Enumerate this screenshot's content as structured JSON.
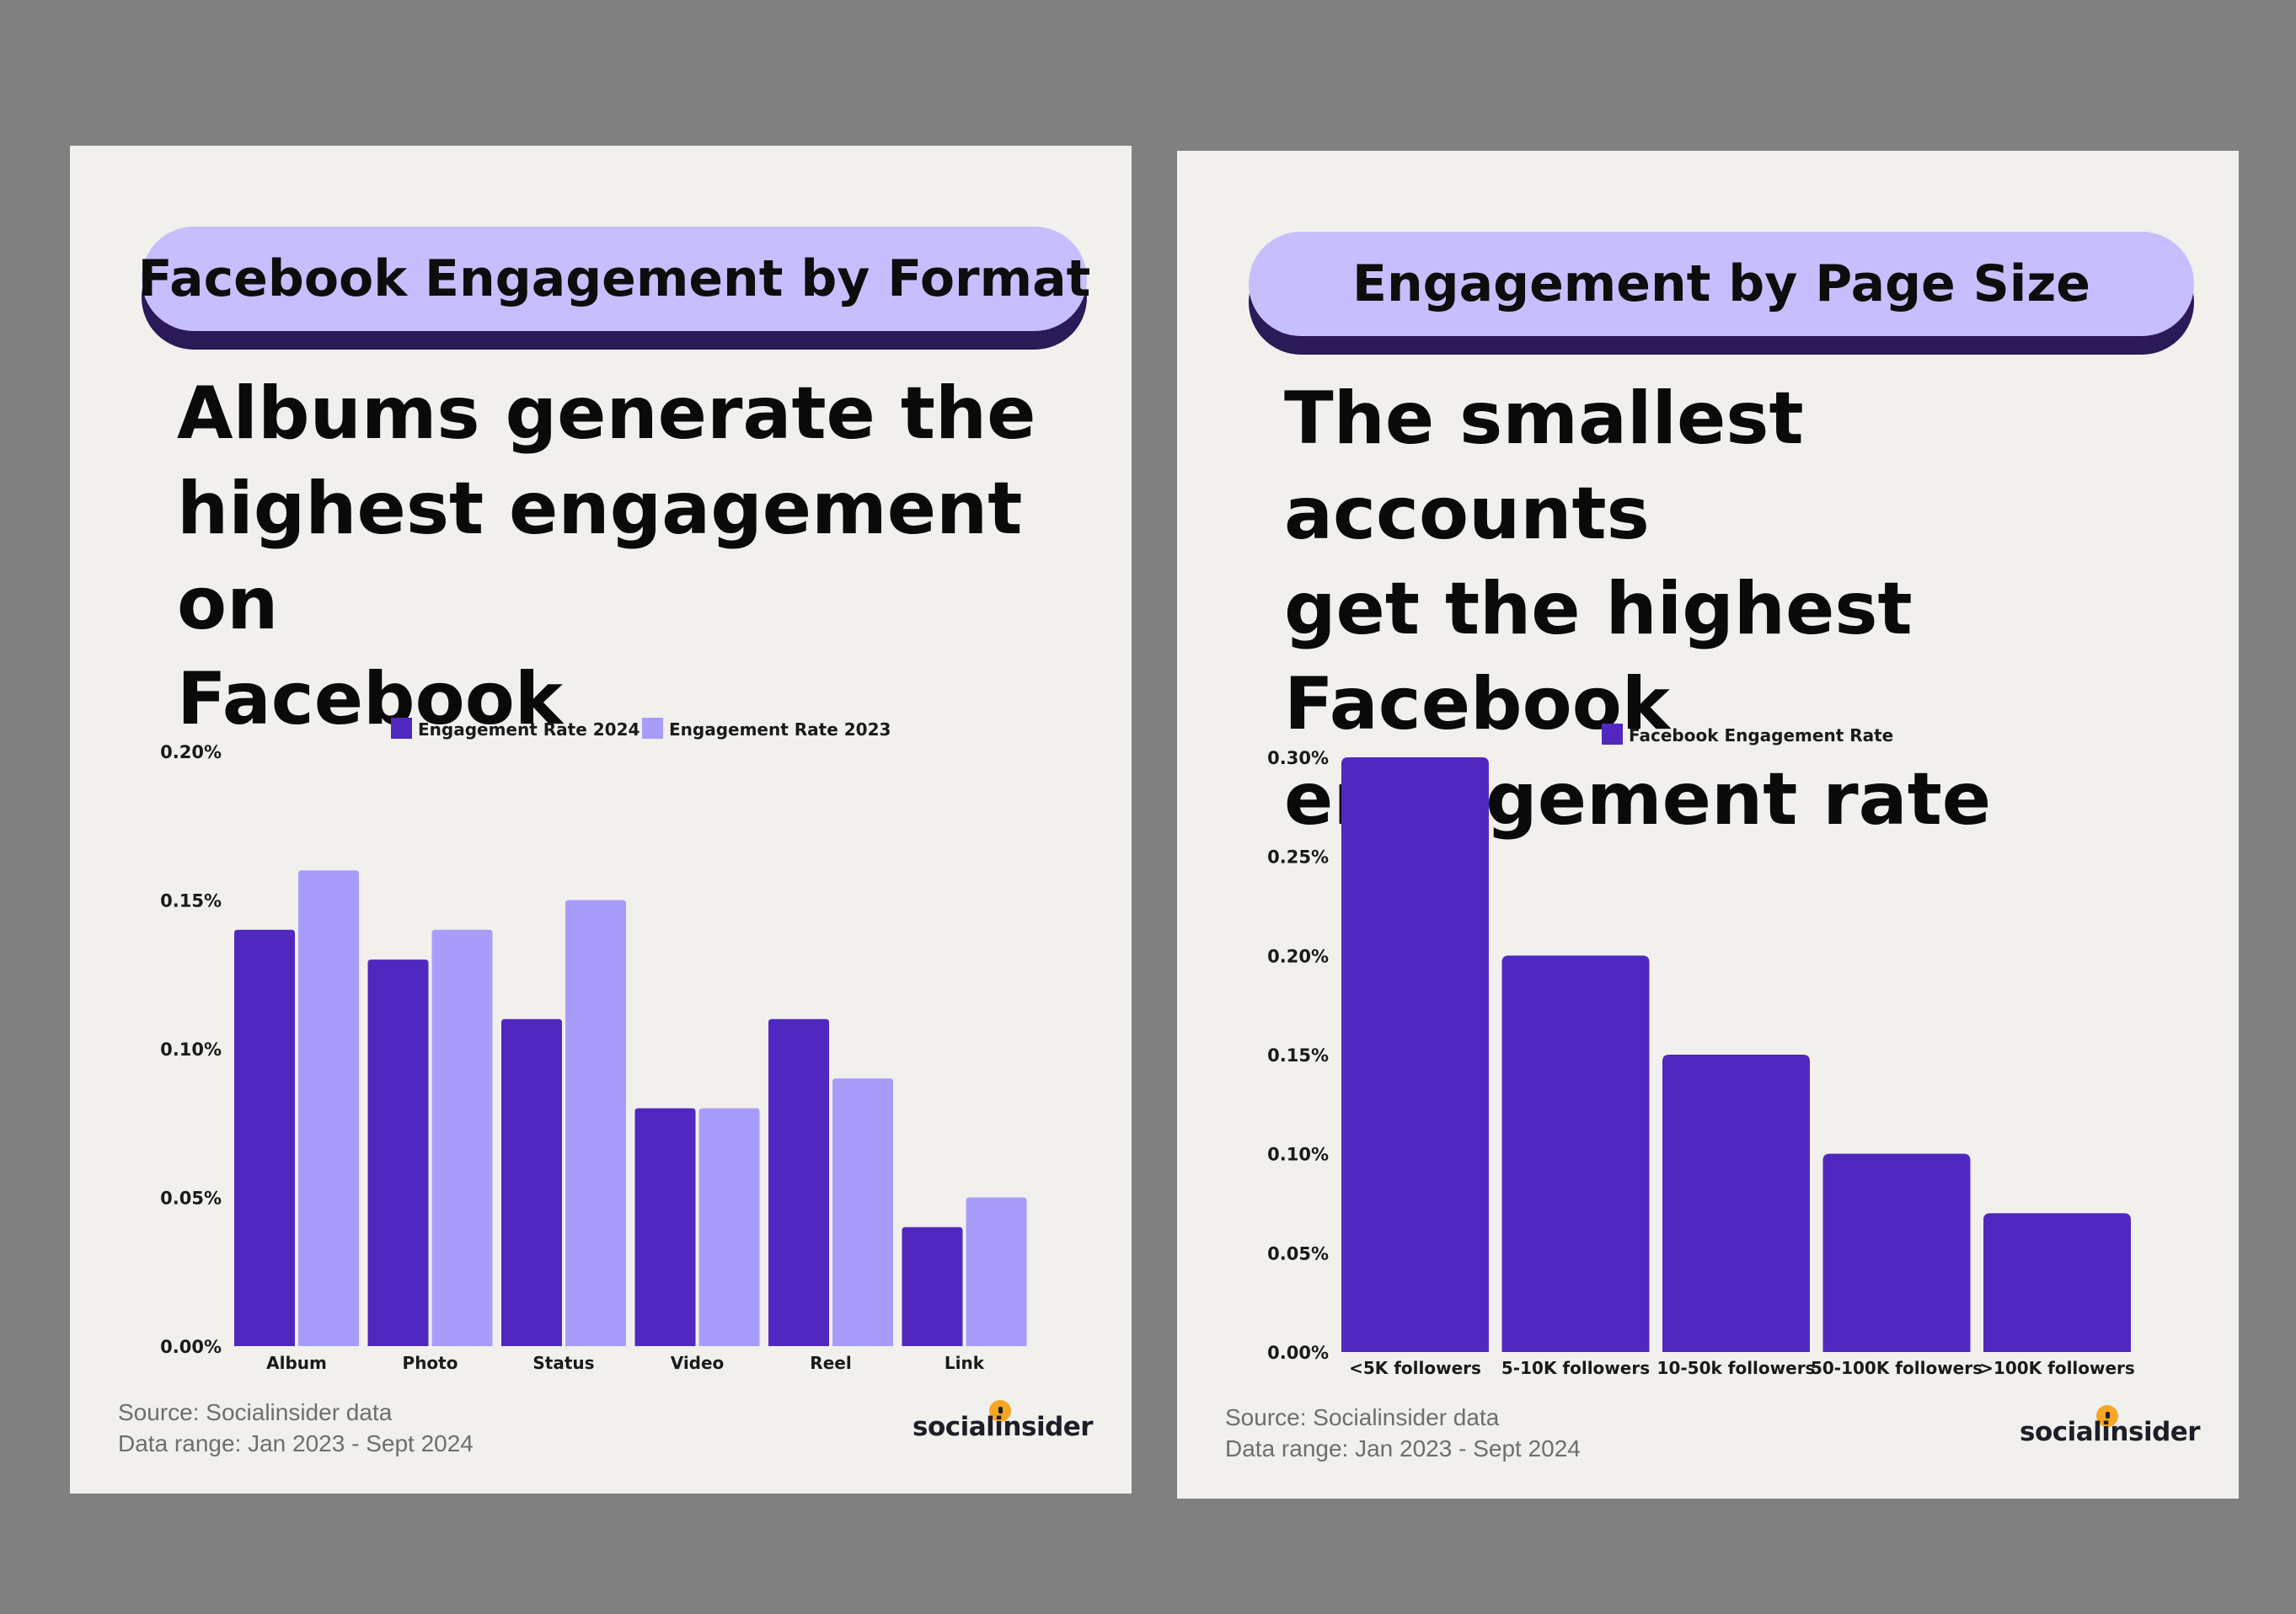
{
  "panels": [
    {
      "pill_title": "Facebook Engagement by Format",
      "headline_lines": [
        "Albums generate the",
        "highest engagement on",
        "Facebook"
      ],
      "source_line1": "Source: Socialinsider data",
      "source_line2": "Data range: Jan 2023 - Sept 2024",
      "brand": "socialinsider"
    },
    {
      "pill_title": "Engagement by Page Size",
      "headline_lines": [
        "The smallest accounts",
        "get the highest Facebook",
        "engagement rate"
      ],
      "source_line1": "Source: Socialinsider data",
      "source_line2": "Data range: Jan 2023 - Sept 2024",
      "brand": "socialinsider"
    }
  ],
  "colors": {
    "dark_purple": "#5028c0",
    "light_purple": "#a89cfb",
    "pill": "#c7bffd",
    "pill_shadow": "#2a1a57",
    "card": "#f1f0ec",
    "brand_dot": "#f6a623"
  },
  "chart_data": [
    {
      "type": "bar",
      "categories": [
        "Album",
        "Photo",
        "Status",
        "Video",
        "Reel",
        "Link"
      ],
      "series": [
        {
          "name": "Engagement Rate 2024",
          "values": [
            0.14,
            0.13,
            0.11,
            0.08,
            0.11,
            0.04
          ],
          "color": "#5028c0"
        },
        {
          "name": "Engagement Rate 2023",
          "values": [
            0.16,
            0.14,
            0.15,
            0.08,
            0.09,
            0.05
          ],
          "color": "#a89cfb"
        }
      ],
      "ylim": [
        0,
        0.2
      ],
      "yticks": [
        0,
        0.05,
        0.1,
        0.15,
        0.2
      ],
      "ytick_labels": [
        "0.00%",
        "0.05%",
        "0.10%",
        "0.15%",
        "0.20%"
      ],
      "legend_position": "top-center",
      "title": "",
      "xlabel": "",
      "ylabel": ""
    },
    {
      "type": "bar",
      "categories": [
        "<5K followers",
        "5-10K followers",
        "10-50k followers",
        "50-100K followers",
        ">100K followers"
      ],
      "series": [
        {
          "name": "Facebook Engagement Rate",
          "values": [
            0.3,
            0.2,
            0.15,
            0.1,
            0.07
          ],
          "color": "#5028c0"
        }
      ],
      "ylim": [
        0,
        0.3
      ],
      "yticks": [
        0,
        0.05,
        0.1,
        0.15,
        0.2,
        0.25,
        0.3
      ],
      "ytick_labels": [
        "0.00%",
        "0.05%",
        "0.10%",
        "0.15%",
        "0.20%",
        "0.25%",
        "0.30%"
      ],
      "legend_position": "top-center",
      "title": "",
      "xlabel": "",
      "ylabel": ""
    }
  ]
}
